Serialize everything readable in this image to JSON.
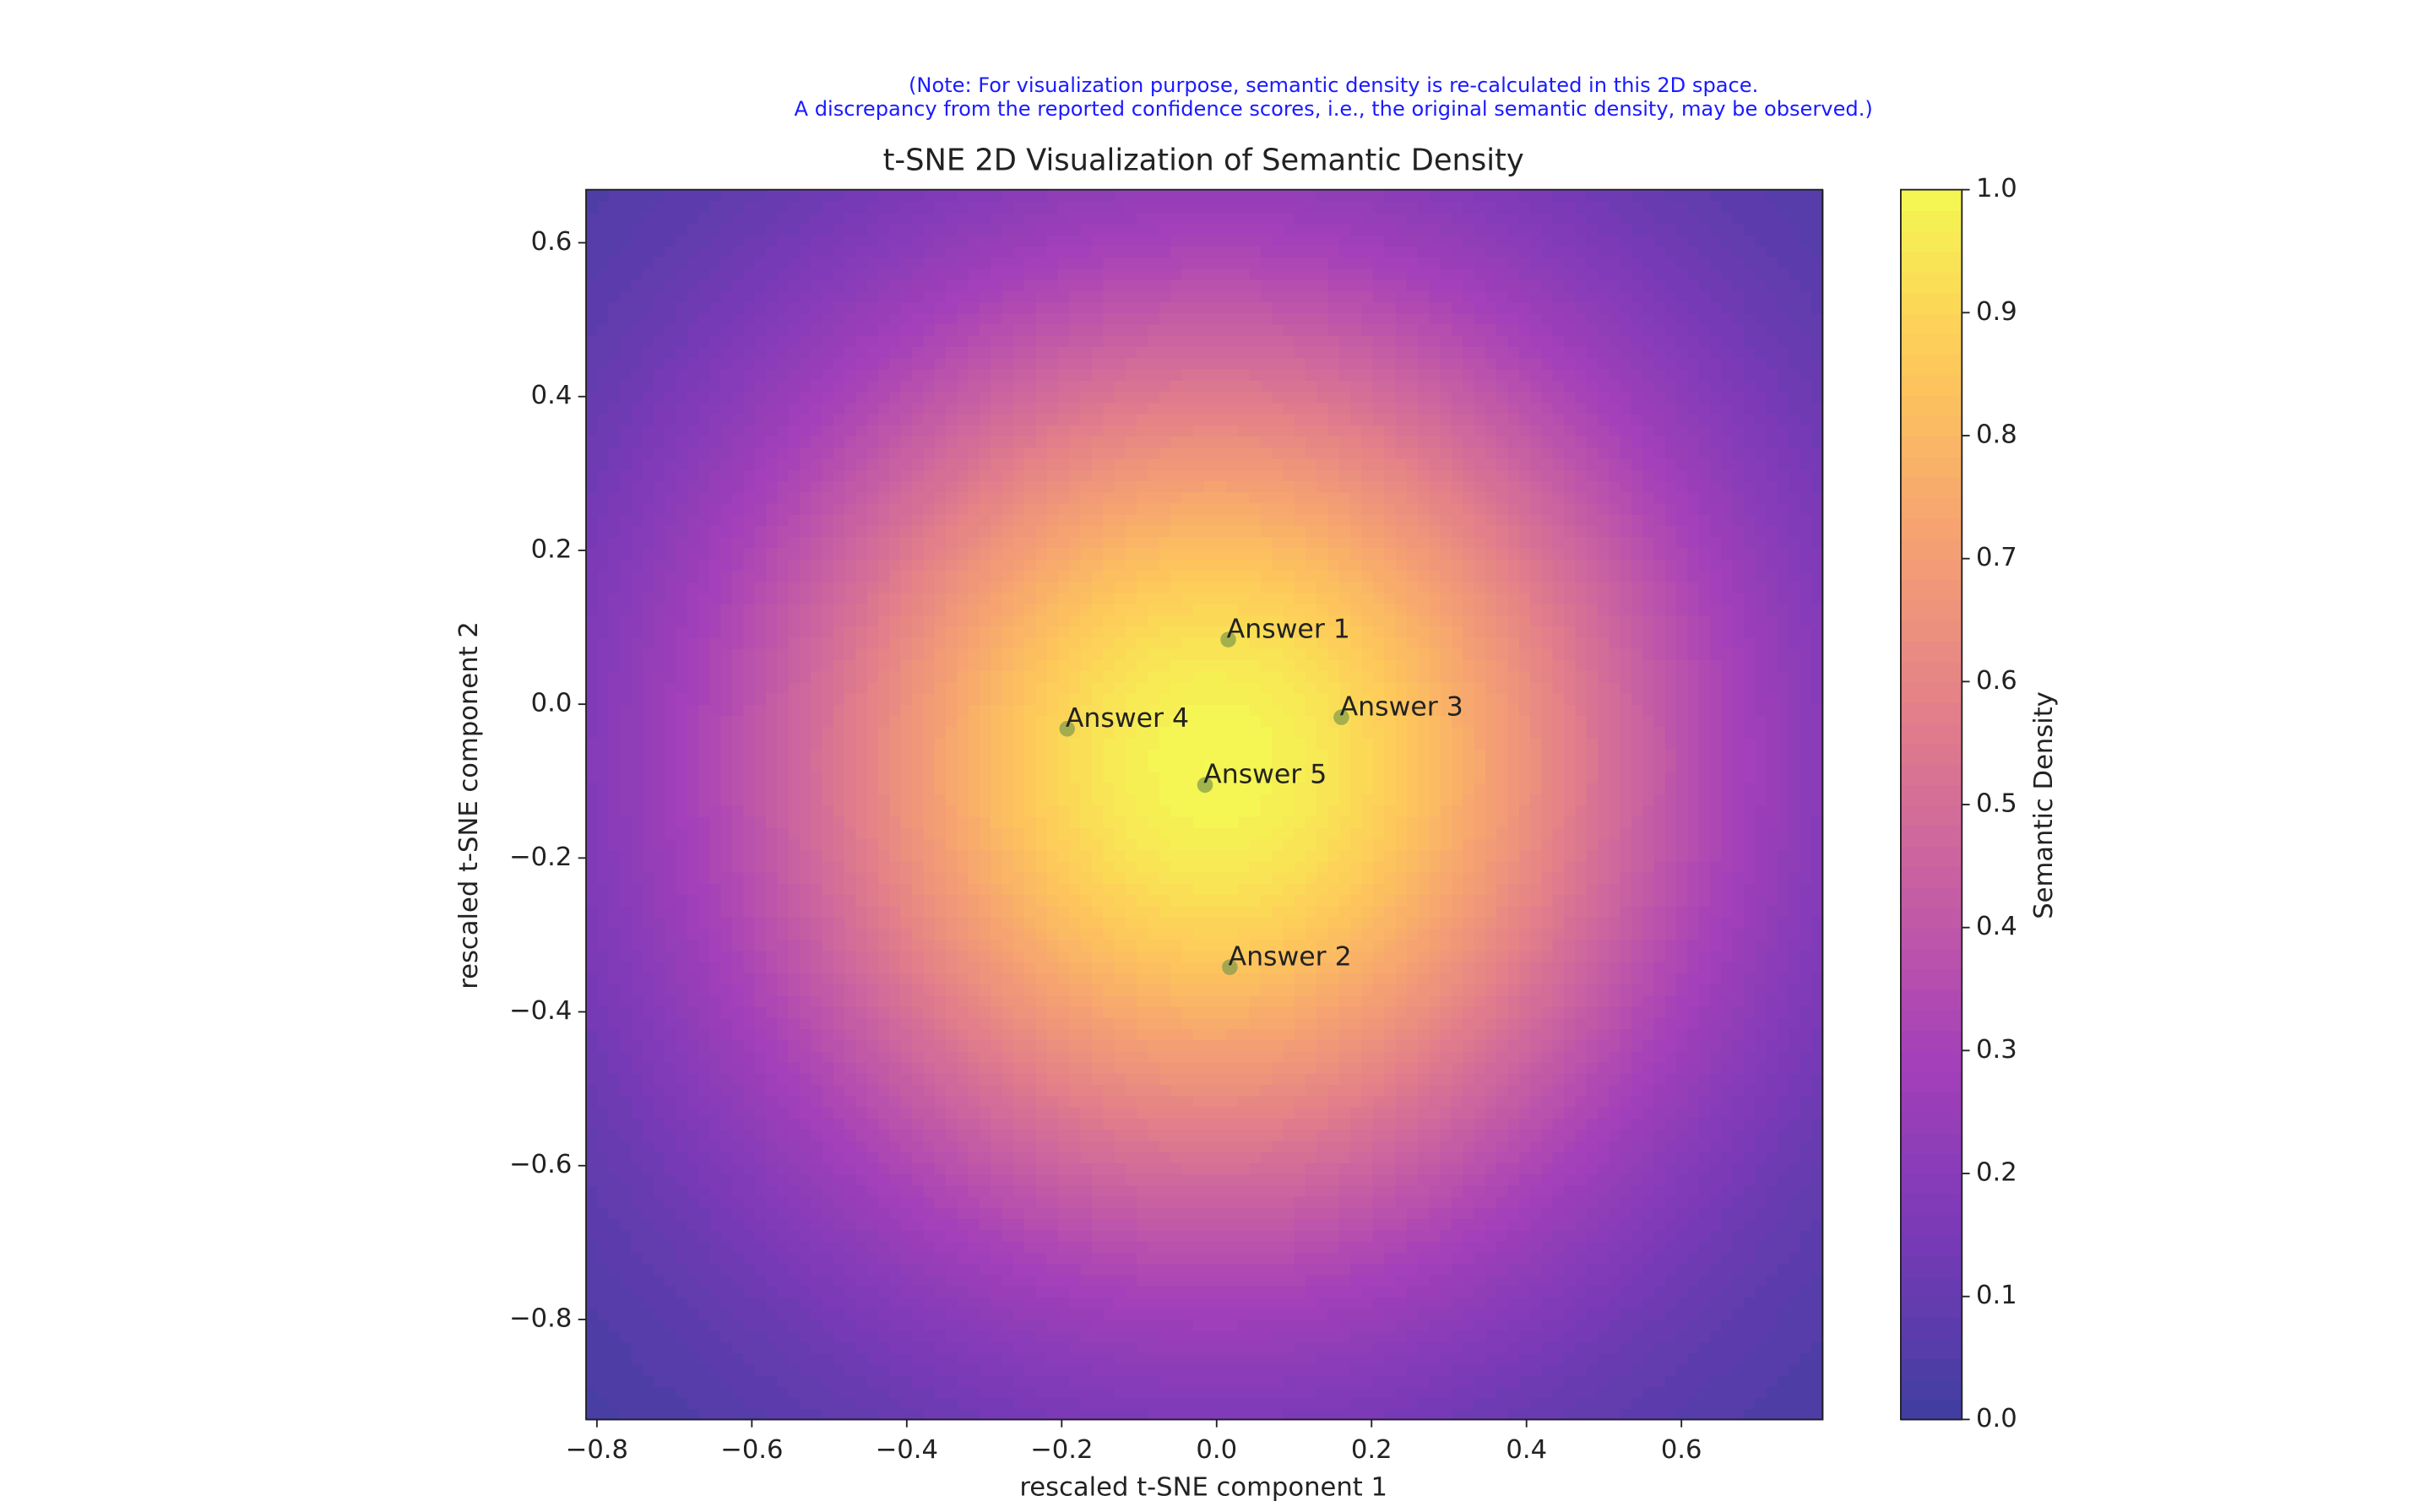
{
  "chart_data": {
    "type": "scatter",
    "title": "t-SNE 2D Visualization of Semantic Density",
    "note": [
      "(Note: For visualization purpose, semantic density is re-calculated in this 2D space.",
      "A discrepancy from the reported confidence scores, i.e., the original semantic density, may be observed.)"
    ],
    "note_color": "#1a1aff",
    "xlabel": "rescaled t-SNE component 1",
    "ylabel": "rescaled t-SNE component 2",
    "labels": [
      "Answer 1",
      "Answer 2",
      "Answer 3",
      "Answer 4",
      "Answer 5"
    ],
    "x": [
      0.015,
      0.017,
      0.161,
      -0.193,
      -0.015
    ],
    "y": [
      0.084,
      -0.342,
      -0.017,
      -0.032,
      -0.105
    ],
    "point_color": "#7f9a4a",
    "xlim": [
      -0.814,
      0.782
    ],
    "ylim": [
      -0.93,
      0.669
    ],
    "xticks": [
      {
        "value": -0.8,
        "label": "−0.8"
      },
      {
        "value": -0.6,
        "label": "−0.6"
      },
      {
        "value": -0.4,
        "label": "−0.4"
      },
      {
        "value": -0.2,
        "label": "−0.2"
      },
      {
        "value": 0,
        "label": "0.0"
      },
      0.2,
      0.4,
      0.6
    ],
    "yticks": [
      {
        "value": -0.8,
        "label": "−0.8"
      },
      {
        "value": -0.6,
        "label": "−0.6"
      },
      {
        "value": -0.4,
        "label": "−0.4"
      },
      {
        "value": -0.2,
        "label": "−0.2"
      },
      {
        "value": 0,
        "label": "0.0"
      },
      0.2,
      0.4,
      0.6
    ],
    "colormap": "plasma",
    "colorbar": {
      "label": "Semantic Density",
      "lim": [
        0,
        1
      ],
      "ticks": [
        {
          "value": 0,
          "label": "0.0"
        },
        0.1,
        0.2,
        0.3,
        0.4,
        0.5,
        0.6,
        0.7,
        0.8,
        0.9,
        {
          "value": 1,
          "label": "1.0"
        }
      ]
    }
  }
}
